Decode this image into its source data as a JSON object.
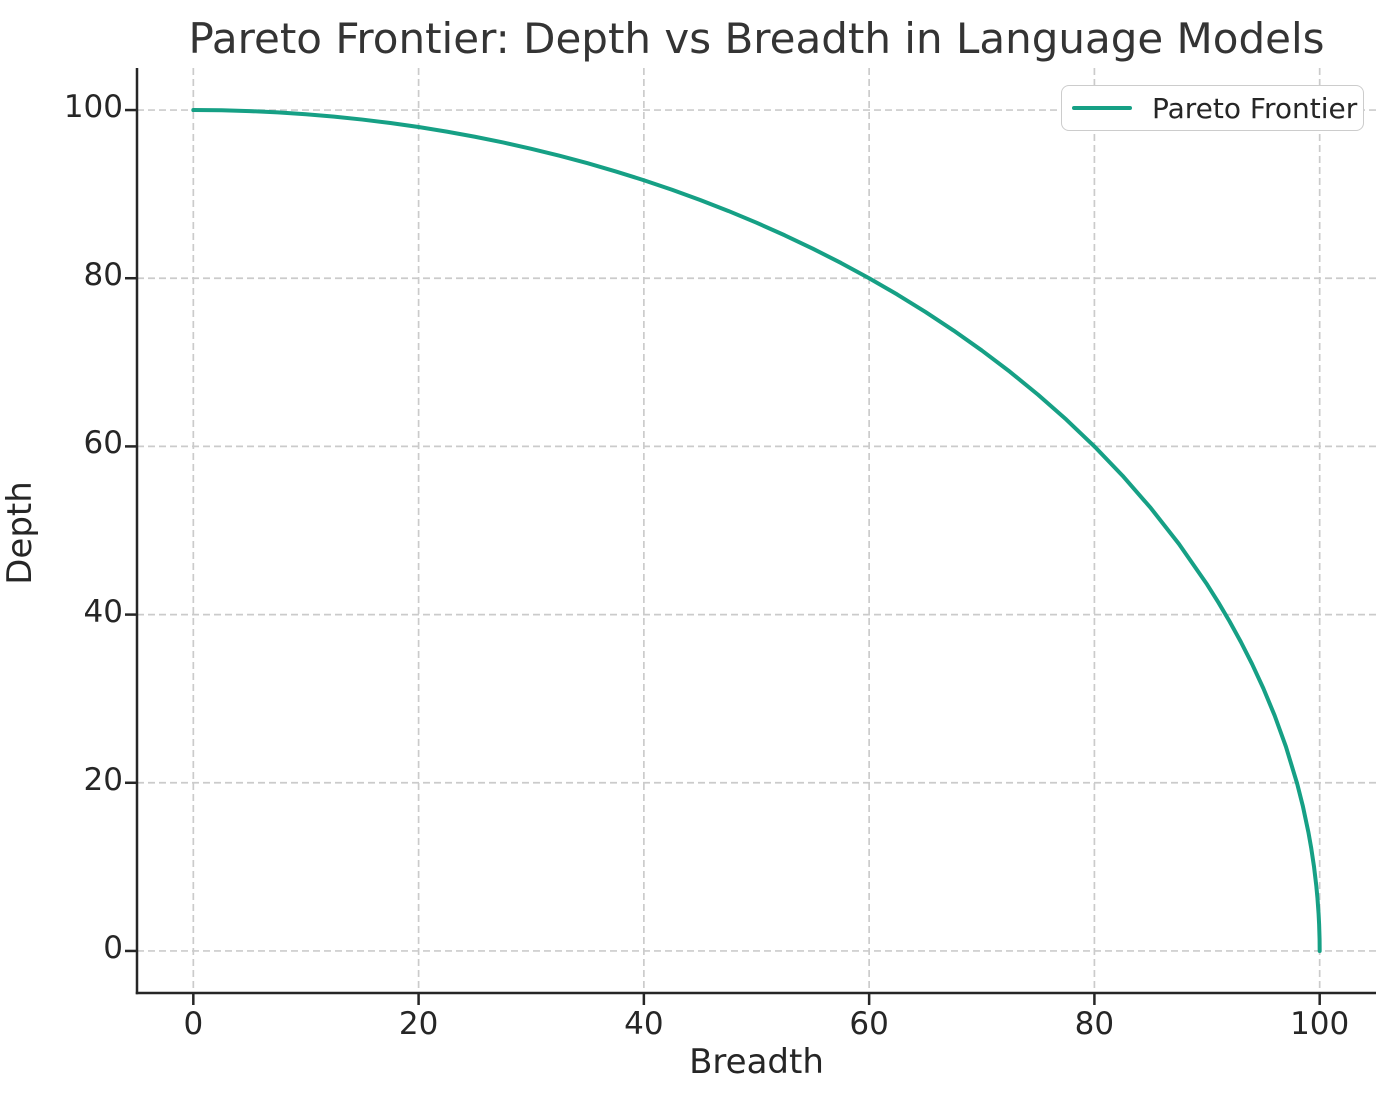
{
  "chart_data": {
    "type": "line",
    "title": "Pareto Frontier: Depth vs Breadth in Language Models",
    "xlabel": "Breadth",
    "ylabel": "Depth",
    "xlim": [
      -5,
      105
    ],
    "ylim": [
      -5,
      105
    ],
    "xticks": [
      0,
      20,
      40,
      60,
      80,
      100
    ],
    "yticks": [
      0,
      20,
      40,
      60,
      80,
      100
    ],
    "grid": true,
    "grid_style": "dashed",
    "grid_color": "#cbcbcb",
    "axis_color": "#262626",
    "legend": {
      "position": "upper right",
      "entries": [
        {
          "label": "Pareto Frontier",
          "color": "#16a085"
        }
      ]
    },
    "series": [
      {
        "name": "Pareto Frontier",
        "color": "#16a085",
        "line_width": 4,
        "points": [
          [
            0,
            100
          ],
          [
            2.5,
            99.969
          ],
          [
            5,
            99.875
          ],
          [
            7.5,
            99.719
          ],
          [
            10,
            99.499
          ],
          [
            12.5,
            99.217
          ],
          [
            15,
            98.869
          ],
          [
            17.5,
            98.457
          ],
          [
            20,
            97.98
          ],
          [
            22.5,
            97.436
          ],
          [
            25,
            96.825
          ],
          [
            27.5,
            96.145
          ],
          [
            30,
            95.394
          ],
          [
            32.5,
            94.571
          ],
          [
            35,
            93.675
          ],
          [
            37.5,
            92.702
          ],
          [
            40,
            91.652
          ],
          [
            42.5,
            90.519
          ],
          [
            45,
            89.303
          ],
          [
            47.5,
            87.999
          ],
          [
            50,
            86.603
          ],
          [
            52.5,
            85.11
          ],
          [
            55,
            83.516
          ],
          [
            57.5,
            81.814
          ],
          [
            60,
            80
          ],
          [
            62.5,
            78.063
          ],
          [
            65,
            75.993
          ],
          [
            67.5,
            73.782
          ],
          [
            70,
            71.414
          ],
          [
            72.5,
            68.875
          ],
          [
            75,
            66.144
          ],
          [
            77.5,
            63.196
          ],
          [
            80,
            60
          ],
          [
            82.5,
            56.513
          ],
          [
            85,
            52.678
          ],
          [
            87.5,
            48.412
          ],
          [
            90,
            43.589
          ],
          [
            91,
            41.461
          ],
          [
            92,
            39.192
          ],
          [
            93,
            36.756
          ],
          [
            94,
            34.117
          ],
          [
            95,
            31.225
          ],
          [
            96,
            28
          ],
          [
            97,
            24.31
          ],
          [
            98,
            19.9
          ],
          [
            98.5,
            17.256
          ],
          [
            99,
            14.107
          ],
          [
            99.25,
            12.225
          ],
          [
            99.5,
            9.987
          ],
          [
            99.7,
            7.74
          ],
          [
            99.8,
            6.321
          ],
          [
            99.9,
            4.471
          ],
          [
            99.95,
            3.162
          ],
          [
            99.99,
            1.414
          ],
          [
            100,
            0
          ]
        ]
      }
    ]
  }
}
